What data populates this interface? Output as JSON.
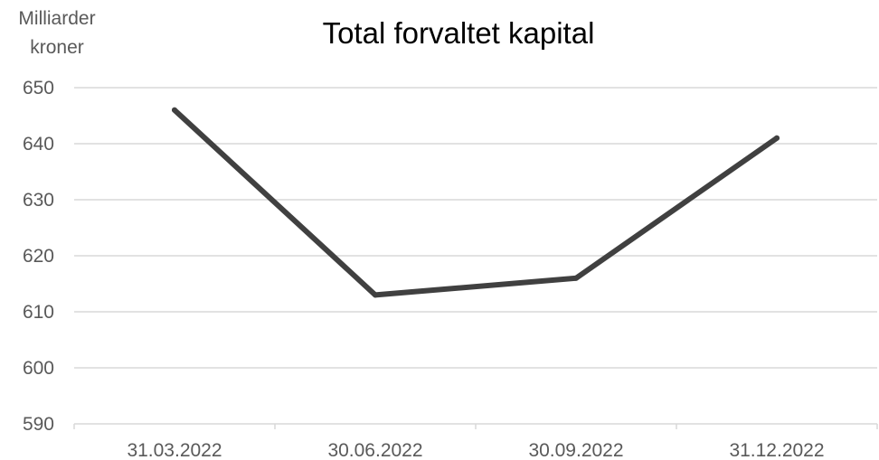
{
  "chart_data": {
    "type": "line",
    "title": "Total forvaltet kapital",
    "ylabel_lines": [
      "Milliarder",
      "kroner"
    ],
    "xlabel": "",
    "categories": [
      "31.03.2022",
      "30.06.2022",
      "30.09.2022",
      "31.12.2022"
    ],
    "series": [
      {
        "values": [
          646,
          613,
          616,
          641
        ]
      }
    ],
    "ylim": [
      590,
      650
    ],
    "yticks": [
      "590",
      "600",
      "610",
      "620",
      "630",
      "640",
      "650"
    ],
    "grid": true,
    "legend": "none",
    "line_color": "#404040"
  }
}
